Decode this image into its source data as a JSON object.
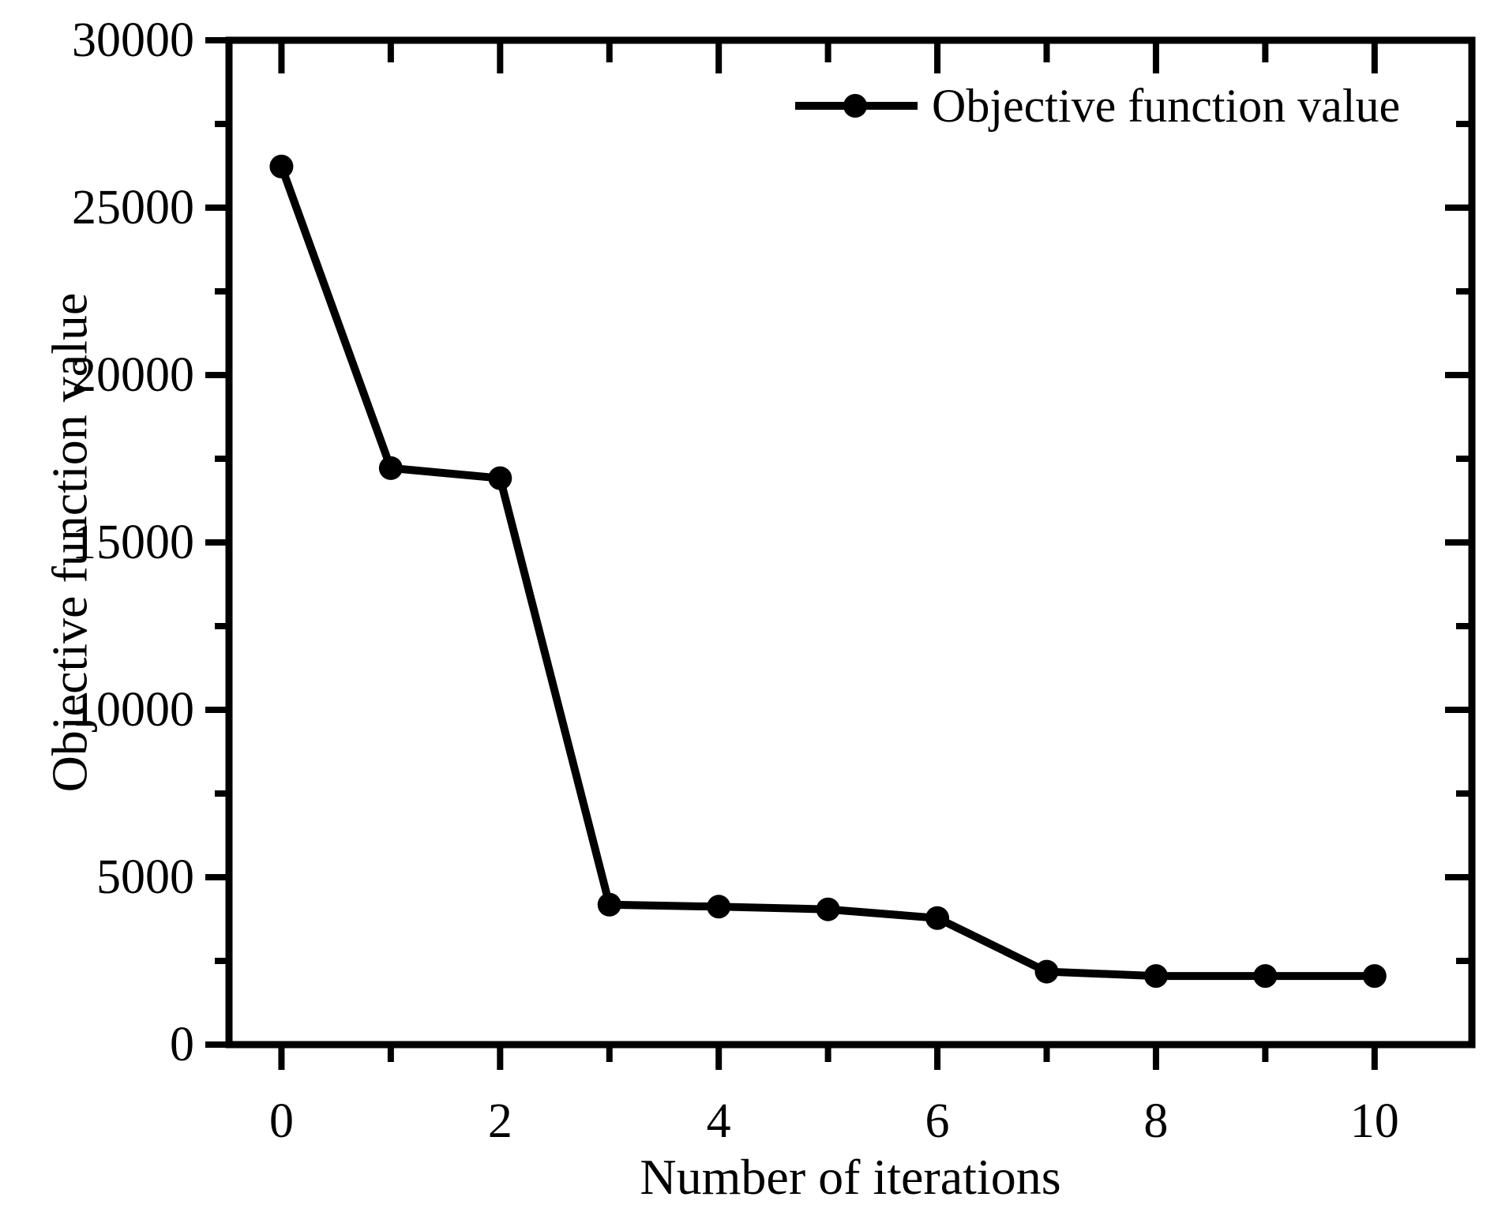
{
  "chart_data": {
    "type": "line",
    "title": "",
    "xlabel": "Number of iterations",
    "ylabel": "Objective function value",
    "series": [
      {
        "name": "Objective function value",
        "x": [
          0,
          1,
          2,
          3,
          4,
          5,
          6,
          7,
          8,
          9,
          10
        ],
        "y": [
          26230,
          17220,
          16920,
          4180,
          4120,
          4040,
          3780,
          2180,
          2050,
          2050,
          2050
        ]
      }
    ],
    "xlim": [
      -0.48,
      10.89
    ],
    "ylim": [
      0,
      30000
    ],
    "x_major_ticks": [
      0,
      2,
      4,
      6,
      8,
      10
    ],
    "x_minor_ticks": [
      1,
      3,
      5,
      7,
      9
    ],
    "y_major_ticks": [
      0,
      5000,
      10000,
      15000,
      20000,
      25000,
      30000
    ],
    "y_minor_ticks": [
      2500,
      7500,
      12500,
      17500,
      22500,
      27500
    ],
    "grid": false,
    "legend": {
      "label": "Objective function value",
      "position": "top-right-inside",
      "marker": "filled-circle"
    },
    "colors": {
      "line": "#000000",
      "marker": "#000000",
      "text": "#000000",
      "axis": "#000000",
      "background": "#ffffff"
    }
  }
}
